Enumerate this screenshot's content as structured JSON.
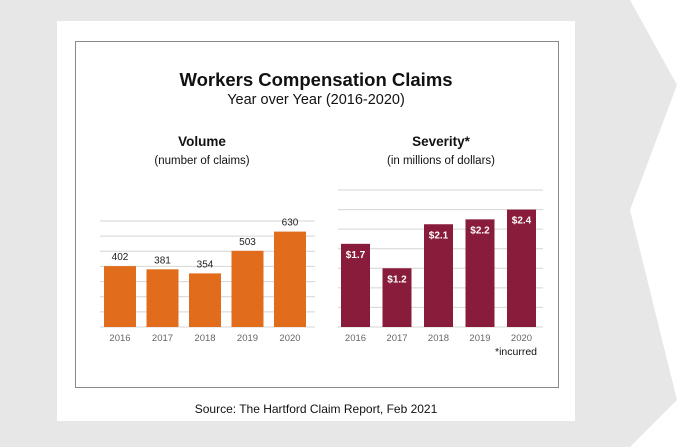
{
  "title": "Workers Compensation Claims",
  "subtitle": "Year over Year (2016-2020)",
  "source": "Source: The Hartford Claim Report, Feb 2021",
  "colors": {
    "volume": "#e06c1c",
    "severity": "#891b3b",
    "grid": "#d4d4d4",
    "background": "#e7e7e7"
  },
  "chart_data": [
    {
      "type": "bar",
      "title": "Volume",
      "subtitle": "(number of claims)",
      "categories": [
        "2016",
        "2017",
        "2018",
        "2019",
        "2020"
      ],
      "values": [
        402,
        381,
        354,
        503,
        630
      ],
      "labels": [
        "402",
        "381",
        "354",
        "503",
        "630"
      ],
      "ylim": [
        0,
        700
      ],
      "grid": true,
      "color": "#e06c1c"
    },
    {
      "type": "bar",
      "title": "Severity*",
      "subtitle": "(in millions of dollars)",
      "categories": [
        "2016",
        "2017",
        "2018",
        "2019",
        "2020"
      ],
      "values": [
        1.7,
        1.2,
        2.1,
        2.2,
        2.4
      ],
      "labels": [
        "$1.7",
        "$1.2",
        "$2.1",
        "$2.2",
        "$2.4"
      ],
      "ylim": [
        0,
        2.8
      ],
      "grid": true,
      "footnote": "*incurred",
      "color": "#891b3b"
    }
  ]
}
